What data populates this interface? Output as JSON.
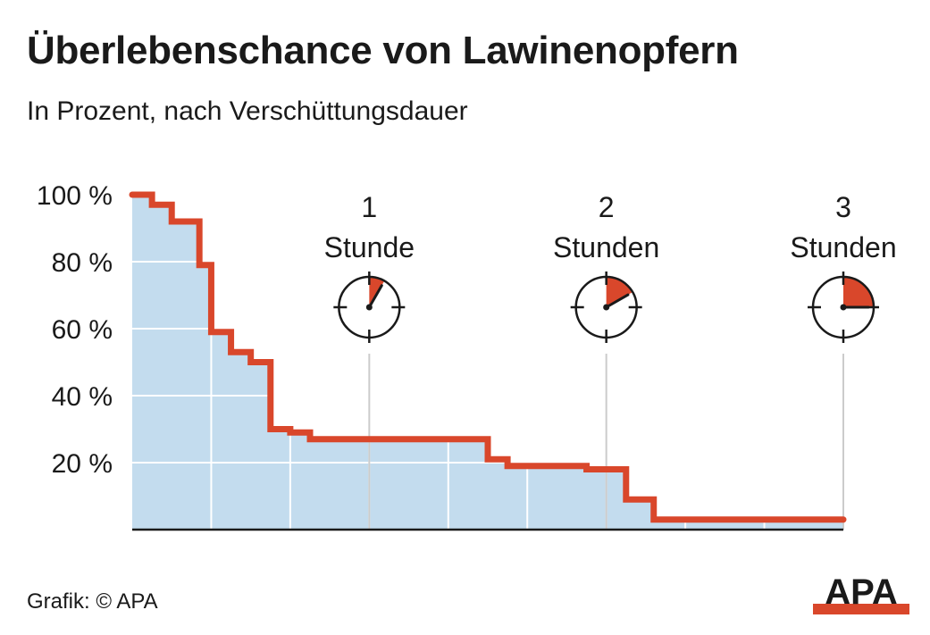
{
  "title": "Überlebenschance von Lawinenopfern",
  "subtitle": "In Prozent, nach Verschüttungsdauer",
  "credit": "Grafik: © APA",
  "logo_text": "APA",
  "colors": {
    "line": "#d9472b",
    "area": "#c3dcee",
    "grid": "#ffffff",
    "axis": "#1a1a1a",
    "marker_line": "#cccccc",
    "clock_fill": "#d9472b"
  },
  "chart_data": {
    "type": "area",
    "step": true,
    "title": "Überlebenschance von Lawinenopfern",
    "subtitle": "In Prozent, nach Verschüttungsdauer",
    "x_unit": "minutes",
    "xlim": [
      0,
      180
    ],
    "ylim": [
      0,
      100
    ],
    "y_ticks": [
      20,
      40,
      60,
      80,
      100
    ],
    "y_tick_labels": [
      "20 %",
      "40 %",
      "60 %",
      "80 %",
      "100 %"
    ],
    "grid": true,
    "steps": [
      {
        "x": 0,
        "y": 100
      },
      {
        "x": 5,
        "y": 97
      },
      {
        "x": 10,
        "y": 92
      },
      {
        "x": 17,
        "y": 79
      },
      {
        "x": 20,
        "y": 59
      },
      {
        "x": 25,
        "y": 53
      },
      {
        "x": 30,
        "y": 50
      },
      {
        "x": 35,
        "y": 30
      },
      {
        "x": 40,
        "y": 29
      },
      {
        "x": 45,
        "y": 27
      },
      {
        "x": 90,
        "y": 21
      },
      {
        "x": 95,
        "y": 19
      },
      {
        "x": 115,
        "y": 18
      },
      {
        "x": 125,
        "y": 9
      },
      {
        "x": 132,
        "y": 3
      },
      {
        "x": 180,
        "y": 3
      }
    ],
    "markers": [
      {
        "x": 60,
        "number": "1",
        "unit": "Stunde",
        "fraction": 0.083
      },
      {
        "x": 120,
        "number": "2",
        "unit": "Stunden",
        "fraction": 0.167
      },
      {
        "x": 180,
        "number": "3",
        "unit": "Stunden",
        "fraction": 0.25
      }
    ]
  }
}
